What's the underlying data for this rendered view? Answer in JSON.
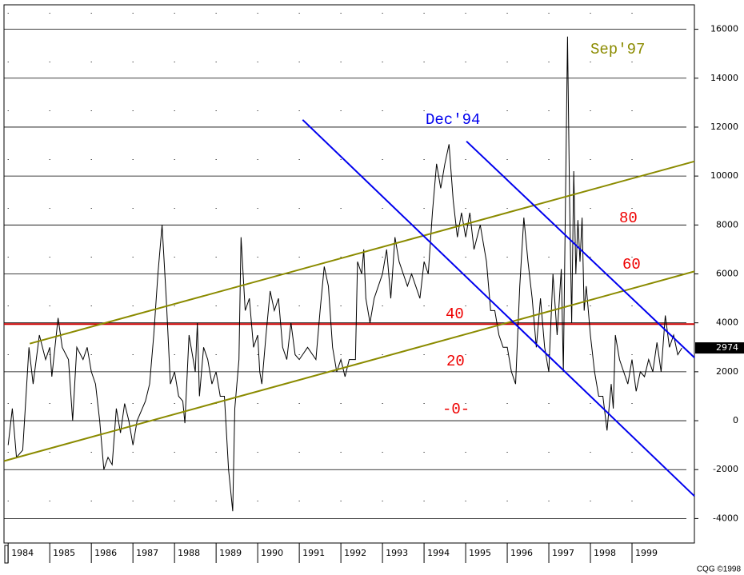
{
  "chart_data": {
    "type": "line",
    "color": "#000000",
    "x": [
      1984.0,
      1984.1,
      1984.2,
      1984.35,
      1984.5,
      1984.6,
      1984.75,
      1984.9,
      1985.0,
      1985.05,
      1985.2,
      1985.3,
      1985.45,
      1985.55,
      1985.65,
      1985.8,
      1985.9,
      1986.0,
      1986.1,
      1986.2,
      1986.3,
      1986.4,
      1986.5,
      1986.6,
      1986.7,
      1986.8,
      1986.9,
      1987.0,
      1987.1,
      1987.3,
      1987.4,
      1987.5,
      1987.6,
      1987.7,
      1987.8,
      1987.9,
      1988.0,
      1988.1,
      1988.2,
      1988.25,
      1988.35,
      1988.5,
      1988.55,
      1988.6,
      1988.7,
      1988.8,
      1988.9,
      1989.0,
      1989.1,
      1989.2,
      1989.3,
      1989.4,
      1989.45,
      1989.55,
      1989.6,
      1989.7,
      1989.8,
      1989.9,
      1990.0,
      1990.05,
      1990.1,
      1990.2,
      1990.3,
      1990.4,
      1990.5,
      1990.6,
      1990.7,
      1990.8,
      1990.9,
      1991.0,
      1991.2,
      1991.4,
      1991.5,
      1991.6,
      1991.7,
      1991.8,
      1991.9,
      1992.0,
      1992.1,
      1992.2,
      1992.35,
      1992.4,
      1992.5,
      1992.55,
      1992.6,
      1992.7,
      1992.8,
      1992.9,
      1993.0,
      1993.1,
      1993.2,
      1993.3,
      1993.4,
      1993.5,
      1993.6,
      1993.7,
      1993.8,
      1993.9,
      1994.0,
      1994.1,
      1994.2,
      1994.3,
      1994.4,
      1994.5,
      1994.6,
      1994.7,
      1994.8,
      1994.9,
      1995.0,
      1995.1,
      1995.2,
      1995.35,
      1995.5,
      1995.6,
      1995.7,
      1995.8,
      1995.9,
      1996.0,
      1996.1,
      1996.2,
      1996.3,
      1996.4,
      1996.5,
      1996.6,
      1996.7,
      1996.8,
      1996.9,
      1997.0,
      1997.1,
      1997.2,
      1997.3,
      1997.35,
      1997.45,
      1997.5,
      1997.55,
      1997.6,
      1997.65,
      1997.7,
      1997.75,
      1997.8,
      1997.85,
      1997.9,
      1998.0,
      1998.1,
      1998.2,
      1998.3,
      1998.4,
      1998.5,
      1998.55,
      1998.6,
      1998.7,
      1998.8,
      1998.9,
      1999.0,
      1999.1,
      1999.2,
      1999.3,
      1999.4,
      1999.5,
      1999.6,
      1999.7,
      1999.8,
      1999.9,
      2000.0,
      2000.1,
      2000.2
    ],
    "values": [
      -1000,
      500,
      -1500,
      -1200,
      3000,
      1500,
      3500,
      2500,
      3000,
      1800,
      4200,
      3000,
      2500,
      0,
      3000,
      2500,
      3000,
      2000,
      1500,
      0,
      -2000,
      -1500,
      -1800,
      500,
      -500,
      700,
      0,
      -1000,
      0,
      800,
      1500,
      3500,
      6000,
      8000,
      5000,
      1500,
      2000,
      1000,
      800,
      -100,
      3500,
      2000,
      4000,
      1000,
      3000,
      2500,
      1500,
      2000,
      1000,
      1000,
      -2000,
      -3700,
      500,
      2500,
      7500,
      4500,
      5000,
      3000,
      3500,
      2000,
      1500,
      3500,
      5300,
      4500,
      5000,
      3000,
      2500,
      4000,
      2700,
      2500,
      3000,
      2500,
      4500,
      6300,
      5500,
      3000,
      2000,
      2500,
      1800,
      2500,
      2500,
      6500,
      6000,
      7000,
      5000,
      4000,
      5000,
      5500,
      6000,
      7000,
      5000,
      7500,
      6500,
      6000,
      5500,
      6000,
      5500,
      5000,
      6500,
      6000,
      8500,
      10500,
      9500,
      10500,
      11300,
      9000,
      7500,
      8500,
      7500,
      8500,
      7000,
      8000,
      6500,
      4500,
      4500,
      3500,
      3000,
      3000,
      2000,
      1500,
      5500,
      8300,
      6500,
      5000,
      3000,
      5000,
      3000,
      2000,
      6000,
      3500,
      6200,
      2000,
      15700,
      9000,
      4000,
      10200,
      6000,
      8200,
      6500,
      8300,
      4500,
      5500,
      3500,
      2000,
      1000,
      1000,
      -400,
      1500,
      500,
      3500,
      2500,
      2000,
      1500,
      2500,
      1200,
      2000,
      1800,
      2500,
      2000,
      3200,
      2000,
      4300,
      3000,
      3500,
      2700,
      2974
    ],
    "xlim": [
      1983.9,
      2000.5
    ],
    "xticks": [
      1984,
      1985,
      1986,
      1987,
      1988,
      1989,
      1990,
      1991,
      1992,
      1993,
      1994,
      1995,
      1996,
      1997,
      1998,
      1999
    ],
    "ylim": [
      -5000,
      17000
    ],
    "yticks": [
      -4000,
      -2000,
      0,
      2000,
      4000,
      6000,
      8000,
      10000,
      12000,
      14000,
      16000
    ],
    "grid": true,
    "trend_lines": [
      {
        "x": [
          1983.9,
          2000.5
        ],
        "values": [
          -1650,
          6100
        ],
        "color": "#8b8b00"
      },
      {
        "x": [
          1984.52,
          2000.5
        ],
        "values": [
          3150,
          10600
        ],
        "color": "#8b8b00"
      },
      {
        "x": [
          1991.08,
          2000.5
        ],
        "values": [
          12300,
          -3080
        ],
        "color": "#0000ee"
      },
      {
        "x": [
          1995.02,
          2000.5
        ],
        "values": [
          11420,
          2580
        ],
        "color": "#0000ee"
      }
    ],
    "hline": {
      "value": 3950,
      "color": "#cc0000"
    },
    "annotations": [
      {
        "text": "Sep'97",
        "color": "#8b8b00"
      },
      {
        "text": "Dec'94",
        "color": "#0000ee"
      },
      {
        "text": "80",
        "color": "#ee0000"
      },
      {
        "text": "60",
        "color": "#ee0000"
      },
      {
        "text": "40",
        "color": "#ee0000"
      },
      {
        "text": "20",
        "color": "#ee0000"
      },
      {
        "text": "-0-",
        "color": "#ee0000"
      }
    ],
    "last_value": 2974,
    "footer": "CQG ©1998"
  }
}
